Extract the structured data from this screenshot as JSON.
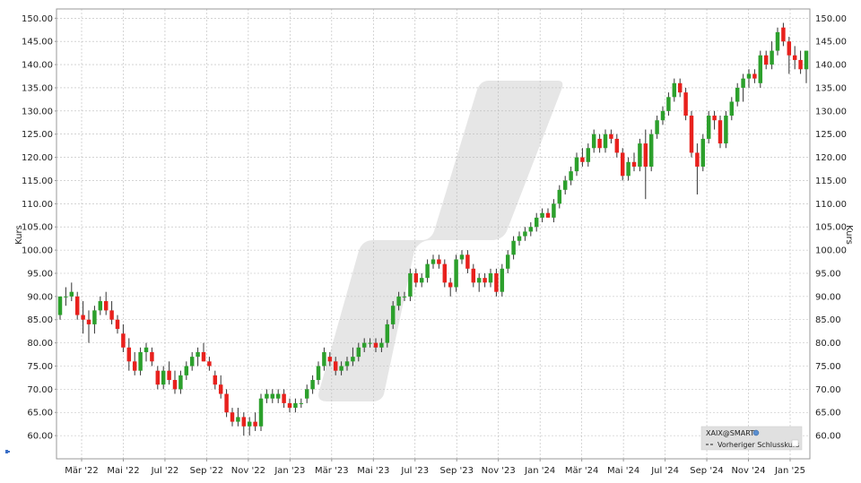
{
  "chart_data": {
    "type": "candlestick",
    "instrument": "XAIX@SMART",
    "ylabel_left": "Kurs",
    "ylabel_right": "Kurs",
    "ylim": [
      55,
      152
    ],
    "yticks": [
      "60.00",
      "65.00",
      "70.00",
      "75.00",
      "80.00",
      "85.00",
      "90.00",
      "95.00",
      "100.00",
      "105.00",
      "110.00",
      "115.00",
      "120.00",
      "125.00",
      "130.00",
      "135.00",
      "140.00",
      "145.00",
      "150.00"
    ],
    "xticks": [
      "Mär '22",
      "Mai '22",
      "Jul '22",
      "Sep '22",
      "Nov '22",
      "Jan '23",
      "Mär '23",
      "Mai '23",
      "Jul '23",
      "Sep '23",
      "Nov '23",
      "Jan '24",
      "Mär '24",
      "Mai '24",
      "Jul '24",
      "Sep '24",
      "Nov '24",
      "Jan '25"
    ],
    "legend": {
      "title": "XAIX@SMART",
      "entry": "Vorheriger Schlusskurs",
      "position": "bottom-right"
    },
    "grid": true,
    "colors": {
      "up": "#2ca02c",
      "down": "#e8211d",
      "wick": "#333333",
      "grid": "#bbbbbb",
      "watermark": "#e6e6e6"
    },
    "candles": [
      {
        "o": 86,
        "h": 90,
        "l": 85,
        "c": 90
      },
      {
        "o": 90,
        "h": 92,
        "l": 88,
        "c": 90
      },
      {
        "o": 90,
        "h": 93,
        "l": 89,
        "c": 91
      },
      {
        "o": 90,
        "h": 91,
        "l": 85,
        "c": 86
      },
      {
        "o": 86,
        "h": 89,
        "l": 82,
        "c": 85
      },
      {
        "o": 85,
        "h": 87,
        "l": 80,
        "c": 84
      },
      {
        "o": 84,
        "h": 88,
        "l": 82,
        "c": 87
      },
      {
        "o": 87,
        "h": 90,
        "l": 86,
        "c": 89
      },
      {
        "o": 89,
        "h": 91,
        "l": 86,
        "c": 87
      },
      {
        "o": 87,
        "h": 89,
        "l": 84,
        "c": 85
      },
      {
        "o": 85,
        "h": 86,
        "l": 82,
        "c": 83
      },
      {
        "o": 82,
        "h": 84,
        "l": 78,
        "c": 79
      },
      {
        "o": 79,
        "h": 81,
        "l": 74,
        "c": 76
      },
      {
        "o": 76,
        "h": 78,
        "l": 73,
        "c": 74
      },
      {
        "o": 74,
        "h": 79,
        "l": 73,
        "c": 78
      },
      {
        "o": 78,
        "h": 80,
        "l": 76,
        "c": 79
      },
      {
        "o": 78,
        "h": 79,
        "l": 75,
        "c": 76
      },
      {
        "o": 74,
        "h": 75,
        "l": 70,
        "c": 71
      },
      {
        "o": 71,
        "h": 75,
        "l": 70,
        "c": 74
      },
      {
        "o": 74,
        "h": 76,
        "l": 71,
        "c": 72
      },
      {
        "o": 72,
        "h": 74,
        "l": 69,
        "c": 70
      },
      {
        "o": 70,
        "h": 74,
        "l": 69,
        "c": 73
      },
      {
        "o": 73,
        "h": 76,
        "l": 72,
        "c": 75
      },
      {
        "o": 75,
        "h": 78,
        "l": 74,
        "c": 77
      },
      {
        "o": 77,
        "h": 79,
        "l": 75,
        "c": 78
      },
      {
        "o": 78,
        "h": 80,
        "l": 76,
        "c": 76
      },
      {
        "o": 76,
        "h": 77,
        "l": 74,
        "c": 75
      },
      {
        "o": 73,
        "h": 74,
        "l": 70,
        "c": 71
      },
      {
        "o": 71,
        "h": 73,
        "l": 68,
        "c": 69
      },
      {
        "o": 69,
        "h": 70,
        "l": 64,
        "c": 65
      },
      {
        "o": 65,
        "h": 66,
        "l": 62,
        "c": 63
      },
      {
        "o": 63,
        "h": 66,
        "l": 62,
        "c": 64
      },
      {
        "o": 64,
        "h": 65,
        "l": 60,
        "c": 62
      },
      {
        "o": 62,
        "h": 64,
        "l": 60,
        "c": 63
      },
      {
        "o": 63,
        "h": 65,
        "l": 61,
        "c": 62
      },
      {
        "o": 62,
        "h": 69,
        "l": 61,
        "c": 68
      },
      {
        "o": 68,
        "h": 70,
        "l": 67,
        "c": 69
      },
      {
        "o": 68,
        "h": 70,
        "l": 67,
        "c": 69
      },
      {
        "o": 68,
        "h": 70,
        "l": 67,
        "c": 69
      },
      {
        "o": 69,
        "h": 70,
        "l": 66,
        "c": 67
      },
      {
        "o": 67,
        "h": 68,
        "l": 65,
        "c": 66
      },
      {
        "o": 66,
        "h": 68,
        "l": 65,
        "c": 67
      },
      {
        "o": 67,
        "h": 68,
        "l": 66,
        "c": 67
      },
      {
        "o": 68,
        "h": 71,
        "l": 67,
        "c": 70
      },
      {
        "o": 70,
        "h": 73,
        "l": 69,
        "c": 72
      },
      {
        "o": 72,
        "h": 76,
        "l": 71,
        "c": 75
      },
      {
        "o": 75,
        "h": 79,
        "l": 74,
        "c": 78
      },
      {
        "o": 77,
        "h": 78,
        "l": 75,
        "c": 76
      },
      {
        "o": 76,
        "h": 77,
        "l": 73,
        "c": 74
      },
      {
        "o": 74,
        "h": 76,
        "l": 73,
        "c": 75
      },
      {
        "o": 75,
        "h": 77,
        "l": 74,
        "c": 76
      },
      {
        "o": 76,
        "h": 79,
        "l": 75,
        "c": 77
      },
      {
        "o": 77,
        "h": 80,
        "l": 76,
        "c": 79
      },
      {
        "o": 79,
        "h": 81,
        "l": 78,
        "c": 80
      },
      {
        "o": 80,
        "h": 81,
        "l": 79,
        "c": 80
      },
      {
        "o": 80,
        "h": 81,
        "l": 78,
        "c": 79
      },
      {
        "o": 79,
        "h": 81,
        "l": 78,
        "c": 80
      },
      {
        "o": 80,
        "h": 85,
        "l": 79,
        "c": 84
      },
      {
        "o": 84,
        "h": 89,
        "l": 83,
        "c": 88
      },
      {
        "o": 88,
        "h": 91,
        "l": 87,
        "c": 90
      },
      {
        "o": 90,
        "h": 91,
        "l": 89,
        "c": 90
      },
      {
        "o": 90,
        "h": 96,
        "l": 89,
        "c": 95
      },
      {
        "o": 95,
        "h": 96,
        "l": 92,
        "c": 93
      },
      {
        "o": 93,
        "h": 95,
        "l": 92,
        "c": 94
      },
      {
        "o": 94,
        "h": 98,
        "l": 93,
        "c": 97
      },
      {
        "o": 97,
        "h": 99,
        "l": 96,
        "c": 98
      },
      {
        "o": 98,
        "h": 99,
        "l": 96,
        "c": 97
      },
      {
        "o": 97,
        "h": 98,
        "l": 92,
        "c": 93
      },
      {
        "o": 93,
        "h": 94,
        "l": 90,
        "c": 92
      },
      {
        "o": 92,
        "h": 99,
        "l": 91,
        "c": 98
      },
      {
        "o": 98,
        "h": 100,
        "l": 97,
        "c": 99
      },
      {
        "o": 99,
        "h": 100,
        "l": 95,
        "c": 96
      },
      {
        "o": 96,
        "h": 97,
        "l": 92,
        "c": 93
      },
      {
        "o": 93,
        "h": 95,
        "l": 91,
        "c": 94
      },
      {
        "o": 94,
        "h": 95,
        "l": 92,
        "c": 93
      },
      {
        "o": 93,
        "h": 96,
        "l": 92,
        "c": 95
      },
      {
        "o": 95,
        "h": 96,
        "l": 90,
        "c": 91
      },
      {
        "o": 91,
        "h": 97,
        "l": 90,
        "c": 96
      },
      {
        "o": 96,
        "h": 100,
        "l": 95,
        "c": 99
      },
      {
        "o": 99,
        "h": 103,
        "l": 98,
        "c": 102
      },
      {
        "o": 102,
        "h": 104,
        "l": 101,
        "c": 103
      },
      {
        "o": 103,
        "h": 105,
        "l": 102,
        "c": 104
      },
      {
        "o": 104,
        "h": 106,
        "l": 103,
        "c": 105
      },
      {
        "o": 105,
        "h": 108,
        "l": 104,
        "c": 107
      },
      {
        "o": 107,
        "h": 109,
        "l": 106,
        "c": 108
      },
      {
        "o": 108,
        "h": 109,
        "l": 107,
        "c": 107
      },
      {
        "o": 107,
        "h": 111,
        "l": 106,
        "c": 110
      },
      {
        "o": 110,
        "h": 114,
        "l": 109,
        "c": 113
      },
      {
        "o": 113,
        "h": 116,
        "l": 112,
        "c": 115
      },
      {
        "o": 115,
        "h": 118,
        "l": 114,
        "c": 117
      },
      {
        "o": 117,
        "h": 121,
        "l": 116,
        "c": 120
      },
      {
        "o": 120,
        "h": 122,
        "l": 118,
        "c": 119
      },
      {
        "o": 119,
        "h": 123,
        "l": 118,
        "c": 122
      },
      {
        "o": 122,
        "h": 126,
        "l": 121,
        "c": 125
      },
      {
        "o": 124,
        "h": 125,
        "l": 121,
        "c": 122
      },
      {
        "o": 122,
        "h": 126,
        "l": 121,
        "c": 125
      },
      {
        "o": 125,
        "h": 126,
        "l": 123,
        "c": 124
      },
      {
        "o": 124,
        "h": 125,
        "l": 120,
        "c": 121
      },
      {
        "o": 121,
        "h": 122,
        "l": 115,
        "c": 116
      },
      {
        "o": 116,
        "h": 120,
        "l": 115,
        "c": 119
      },
      {
        "o": 119,
        "h": 121,
        "l": 117,
        "c": 118
      },
      {
        "o": 118,
        "h": 124,
        "l": 117,
        "c": 123
      },
      {
        "o": 123,
        "h": 126,
        "l": 111,
        "c": 118
      },
      {
        "o": 118,
        "h": 126,
        "l": 117,
        "c": 125
      },
      {
        "o": 125,
        "h": 129,
        "l": 124,
        "c": 128
      },
      {
        "o": 128,
        "h": 131,
        "l": 127,
        "c": 130
      },
      {
        "o": 130,
        "h": 134,
        "l": 129,
        "c": 133
      },
      {
        "o": 133,
        "h": 137,
        "l": 132,
        "c": 136
      },
      {
        "o": 136,
        "h": 137,
        "l": 133,
        "c": 134
      },
      {
        "o": 134,
        "h": 135,
        "l": 128,
        "c": 129
      },
      {
        "o": 129,
        "h": 130,
        "l": 120,
        "c": 121
      },
      {
        "o": 121,
        "h": 123,
        "l": 112,
        "c": 118
      },
      {
        "o": 118,
        "h": 125,
        "l": 117,
        "c": 124
      },
      {
        "o": 124,
        "h": 130,
        "l": 123,
        "c": 129
      },
      {
        "o": 129,
        "h": 130,
        "l": 126,
        "c": 128
      },
      {
        "o": 128,
        "h": 129,
        "l": 122,
        "c": 123
      },
      {
        "o": 123,
        "h": 130,
        "l": 122,
        "c": 129
      },
      {
        "o": 129,
        "h": 133,
        "l": 128,
        "c": 132
      },
      {
        "o": 132,
        "h": 136,
        "l": 131,
        "c": 135
      },
      {
        "o": 135,
        "h": 138,
        "l": 132,
        "c": 137
      },
      {
        "o": 137,
        "h": 139,
        "l": 135,
        "c": 138
      },
      {
        "o": 138,
        "h": 139,
        "l": 136,
        "c": 137
      },
      {
        "o": 136,
        "h": 143,
        "l": 135,
        "c": 142
      },
      {
        "o": 142,
        "h": 143,
        "l": 139,
        "c": 140
      },
      {
        "o": 140,
        "h": 145,
        "l": 139,
        "c": 143
      },
      {
        "o": 143,
        "h": 148,
        "l": 142,
        "c": 147
      },
      {
        "o": 148,
        "h": 149,
        "l": 144,
        "c": 145
      },
      {
        "o": 145,
        "h": 146,
        "l": 138,
        "c": 142
      },
      {
        "o": 142,
        "h": 144,
        "l": 139,
        "c": 141
      },
      {
        "o": 141,
        "h": 143,
        "l": 138,
        "c": 139
      },
      {
        "o": 139,
        "h": 143,
        "l": 136,
        "c": 143
      }
    ]
  }
}
